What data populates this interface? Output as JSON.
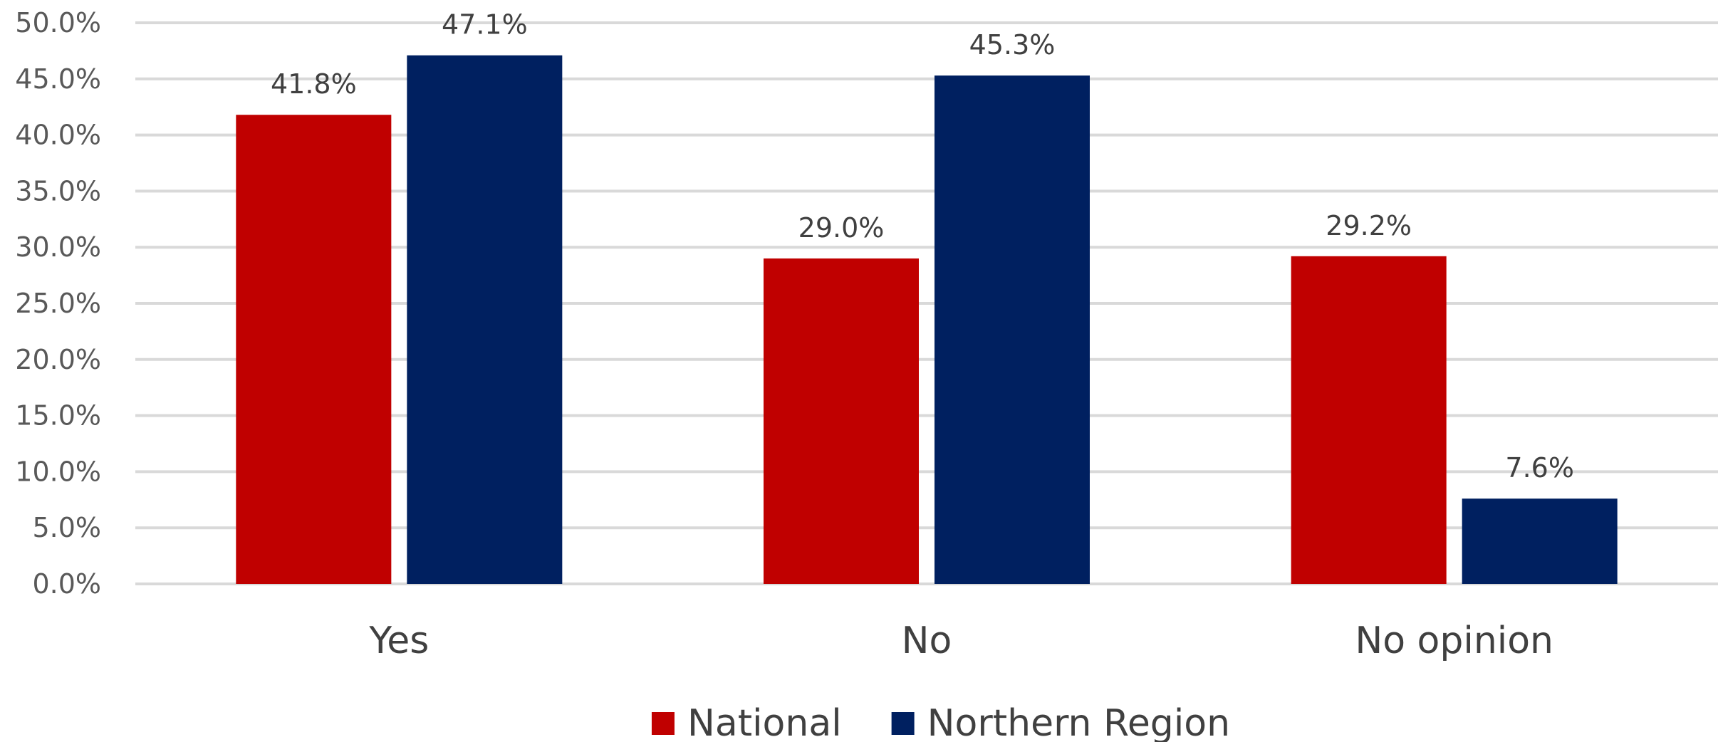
{
  "chart_data": {
    "type": "bar",
    "categories": [
      "Yes",
      "No",
      "No opinion"
    ],
    "series": [
      {
        "name": "National",
        "values": [
          41.8,
          29.0,
          29.2
        ],
        "labels": [
          "41.8%",
          "29.0%",
          "29.2%"
        ],
        "color": "#c00000"
      },
      {
        "name": "Northern Region",
        "values": [
          47.1,
          45.3,
          7.6
        ],
        "labels": [
          "47.1%",
          "45.3%",
          "7.6%"
        ],
        "color": "#002060"
      }
    ],
    "yticks": [
      "0.0%",
      "5.0%",
      "10.0%",
      "15.0%",
      "20.0%",
      "25.0%",
      "30.0%",
      "35.0%",
      "40.0%",
      "45.0%",
      "50.0%"
    ],
    "ylim": [
      0,
      50
    ],
    "grid": true,
    "legend": "bottom"
  }
}
